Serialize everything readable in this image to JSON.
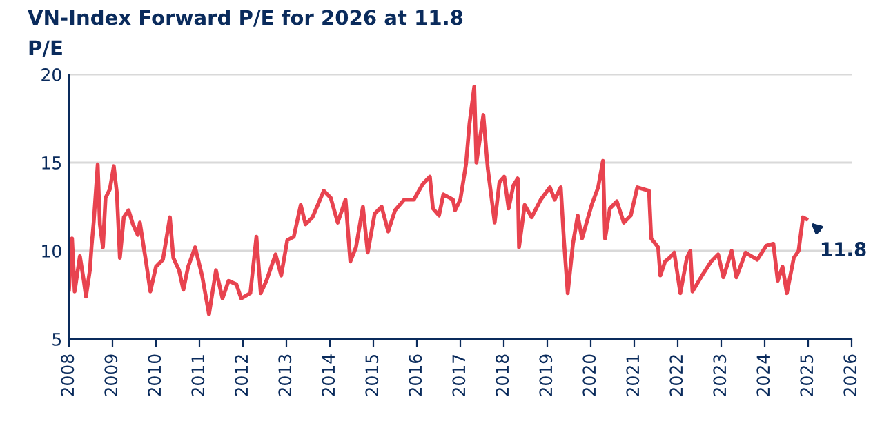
{
  "chart_data": {
    "type": "line",
    "title": "VN-Index Forward P/E for 2026 at 11.8",
    "ylabel": "P/E",
    "x": [
      2008.0,
      2008.07,
      2008.13,
      2008.25,
      2008.34,
      2008.39,
      2008.48,
      2008.52,
      2008.57,
      2008.66,
      2008.71,
      2008.78,
      2008.84,
      2008.94,
      2009.03,
      2009.1,
      2009.17,
      2009.26,
      2009.37,
      2009.47,
      2009.58,
      2009.63,
      2009.77,
      2009.87,
      2010.0,
      2010.16,
      2010.32,
      2010.4,
      2010.53,
      2010.63,
      2010.74,
      2010.9,
      2011.06,
      2011.22,
      2011.38,
      2011.53,
      2011.67,
      2011.85,
      2011.96,
      2012.17,
      2012.31,
      2012.41,
      2012.54,
      2012.75,
      2012.88,
      2013.02,
      2013.17,
      2013.33,
      2013.44,
      2013.6,
      2013.86,
      2014.02,
      2014.18,
      2014.36,
      2014.47,
      2014.6,
      2014.76,
      2014.87,
      2015.03,
      2015.19,
      2015.34,
      2015.5,
      2015.71,
      2015.93,
      2016.14,
      2016.3,
      2016.37,
      2016.51,
      2016.61,
      2016.83,
      2016.88,
      2017.0,
      2017.13,
      2017.21,
      2017.32,
      2017.37,
      2017.53,
      2017.63,
      2017.79,
      2017.9,
      2018.01,
      2018.11,
      2018.22,
      2018.32,
      2018.35,
      2018.48,
      2018.64,
      2018.85,
      2019.06,
      2019.17,
      2019.31,
      2019.38,
      2019.47,
      2019.59,
      2019.7,
      2019.8,
      2020.02,
      2020.17,
      2020.28,
      2020.33,
      2020.44,
      2020.6,
      2020.76,
      2020.92,
      2021.07,
      2021.34,
      2021.39,
      2021.55,
      2021.6,
      2021.71,
      2021.81,
      2021.92,
      2022.06,
      2022.21,
      2022.29,
      2022.34,
      2022.56,
      2022.77,
      2022.93,
      2023.05,
      2023.24,
      2023.35,
      2023.56,
      2023.83,
      2024.04,
      2024.2,
      2024.3,
      2024.41,
      2024.51,
      2024.67,
      2024.78,
      2024.88,
      2024.96
    ],
    "series": [
      {
        "color": "#e8434f",
        "values": [
          7.8,
          10.7,
          7.7,
          9.7,
          8.3,
          7.4,
          8.9,
          10.3,
          11.7,
          14.9,
          11.5,
          10.2,
          13.0,
          13.5,
          14.8,
          13.3,
          9.6,
          11.9,
          12.3,
          11.5,
          10.9,
          11.6,
          9.4,
          7.7,
          9.1,
          9.5,
          11.9,
          9.6,
          8.9,
          7.8,
          9.1,
          10.2,
          8.6,
          6.4,
          8.9,
          7.3,
          8.3,
          8.1,
          7.3,
          7.6,
          10.8,
          7.6,
          8.3,
          9.8,
          8.6,
          10.6,
          10.8,
          12.6,
          11.5,
          11.9,
          13.4,
          13.0,
          11.6,
          12.9,
          9.4,
          10.2,
          12.5,
          9.9,
          12.1,
          12.5,
          11.1,
          12.3,
          12.9,
          12.9,
          13.8,
          14.2,
          12.4,
          12.0,
          13.2,
          12.9,
          12.3,
          12.9,
          14.9,
          17.2,
          19.3,
          15.0,
          17.7,
          14.7,
          11.6,
          13.9,
          14.2,
          12.4,
          13.7,
          14.1,
          10.2,
          12.6,
          11.9,
          12.9,
          13.6,
          12.9,
          13.6,
          10.7,
          7.6,
          10.4,
          12.0,
          10.7,
          12.6,
          13.6,
          15.1,
          10.7,
          12.4,
          12.8,
          11.6,
          12.0,
          13.6,
          13.4,
          10.7,
          10.2,
          8.6,
          9.4,
          9.6,
          9.9,
          7.6,
          9.6,
          10.0,
          7.7,
          8.6,
          9.4,
          9.8,
          8.5,
          10.0,
          8.5,
          9.9,
          9.5,
          10.3,
          10.4,
          8.3,
          9.1,
          7.6,
          9.6,
          10.0,
          11.9,
          11.8
        ]
      }
    ],
    "xlim": [
      2008,
      2026
    ],
    "xticks": [
      2008,
      2009,
      2010,
      2011,
      2012,
      2013,
      2014,
      2015,
      2016,
      2017,
      2018,
      2019,
      2020,
      2021,
      2022,
      2023,
      2024,
      2025,
      2026
    ],
    "ylim": [
      5,
      20
    ],
    "yticks": [
      5,
      10,
      15,
      20
    ],
    "grid": "y",
    "marker": "none",
    "line_style": "solid",
    "annotations": [
      {
        "text": "11.8",
        "x": 2024.96,
        "y": 11.8
      }
    ]
  }
}
